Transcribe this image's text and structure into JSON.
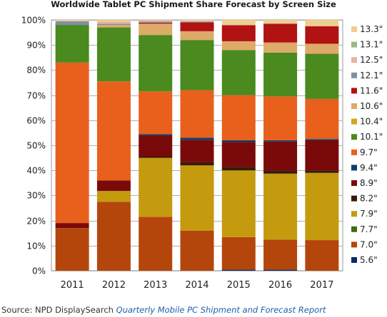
{
  "chart_data": {
    "type": "bar",
    "stacked": true,
    "title": "Worldwide Tablet PC Shipment Share Forecast by Screen Size",
    "categories": [
      "2011",
      "2012",
      "2013",
      "2014",
      "2015",
      "2016",
      "2017"
    ],
    "ylim": [
      0,
      100
    ],
    "yticks": [
      0,
      10,
      20,
      30,
      40,
      50,
      60,
      70,
      80,
      90,
      100
    ],
    "ytick_suffix": "%",
    "grid": true,
    "legend_position": "right",
    "series": [
      {
        "name": "5.6\"",
        "color": "#0a2a66",
        "values": [
          0,
          0,
          0,
          0,
          0.4,
          0.4,
          0
        ]
      },
      {
        "name": "7.0\"",
        "color": "#b5460b",
        "values": [
          17,
          27.5,
          21.5,
          16,
          13,
          12,
          12.2
        ]
      },
      {
        "name": "7.7\"",
        "color": "#3f6e10",
        "values": [
          0,
          0,
          0,
          0,
          0,
          0,
          0
        ]
      },
      {
        "name": "7.9\"",
        "color": "#c49a0f",
        "values": [
          0,
          4.3,
          23.5,
          26,
          26.6,
          26.3,
          26.8
        ]
      },
      {
        "name": "8.2\"",
        "color": "#3a1a06",
        "values": [
          0,
          0,
          0.6,
          1.2,
          1.3,
          1.3,
          1
        ]
      },
      {
        "name": "8.9\"",
        "color": "#7a0a0a",
        "values": [
          2,
          4.2,
          8.4,
          9,
          10,
          11.5,
          12
        ]
      },
      {
        "name": "9.4\"",
        "color": "#0b3f6b",
        "values": [
          0,
          0,
          0.5,
          0.8,
          0.7,
          0.5,
          0.5
        ]
      },
      {
        "name": "9.7\"",
        "color": "#e8601c",
        "values": [
          64,
          39.5,
          17,
          19,
          18,
          17.5,
          16
        ]
      },
      {
        "name": "10.1\"",
        "color": "#4a8a1e",
        "values": [
          15,
          21.5,
          22.5,
          20,
          18,
          17.5,
          18
        ]
      },
      {
        "name": "10.4\"",
        "color": "#d2a81c",
        "values": [
          0,
          0,
          0,
          0,
          0,
          0,
          0
        ]
      },
      {
        "name": "10.6\"",
        "color": "#deaa6a",
        "values": [
          0,
          1,
          4.5,
          3.5,
          3.5,
          4,
          4
        ]
      },
      {
        "name": "11.6\"",
        "color": "#b11212",
        "values": [
          0,
          0,
          0.4,
          3.5,
          6.4,
          7.5,
          7
        ]
      },
      {
        "name": "12.1\"",
        "color": "#7f8fa6",
        "values": [
          1.5,
          0.5,
          0.4,
          0.3,
          0,
          0,
          0
        ]
      },
      {
        "name": "12.5\"",
        "color": "#e3b7a0",
        "values": [
          0,
          0.8,
          0.5,
          0.3,
          0.3,
          0.2,
          0.2
        ]
      },
      {
        "name": "13.1\"",
        "color": "#9ab787",
        "values": [
          0,
          0,
          0,
          0,
          0,
          0,
          0
        ]
      },
      {
        "name": "13.3\"",
        "color": "#eecf8e",
        "values": [
          0.5,
          0.7,
          0.2,
          0.4,
          1.8,
          1.3,
          2.3
        ]
      }
    ]
  },
  "source": {
    "prefix": "Source: NPD DisplaySearch ",
    "report": "Quarterly Mobile PC Shipment and Forecast Report"
  }
}
